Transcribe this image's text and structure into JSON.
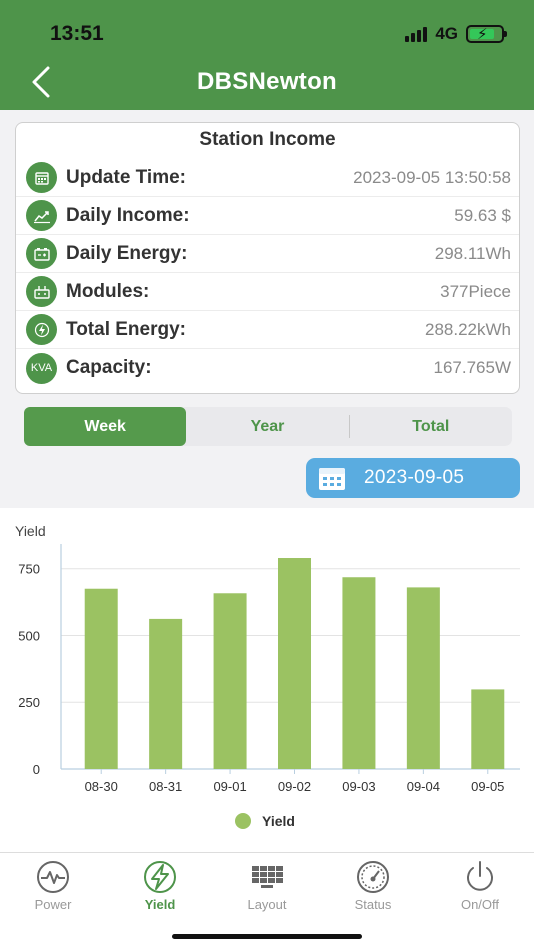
{
  "status_bar": {
    "time": "13:51",
    "network": "4G"
  },
  "header": {
    "title": "DBSNewton"
  },
  "income_card": {
    "title": "Station Income",
    "rows": [
      {
        "icon": "calendar-icon",
        "label": "Update Time:",
        "value": "2023-09-05 13:50:58"
      },
      {
        "icon": "chart-up-icon",
        "label": "Daily Income:",
        "value": "59.63 $"
      },
      {
        "icon": "battery-icon",
        "label": "Daily Energy:",
        "value": "298.11Wh"
      },
      {
        "icon": "module-icon",
        "label": "Modules:",
        "value": "377Piece"
      },
      {
        "icon": "bolt-icon",
        "label": "Total Energy:",
        "value": "288.22kWh"
      },
      {
        "icon": "kva-icon",
        "icon_text": "KVA",
        "label": "Capacity:",
        "value": "167.765W"
      }
    ]
  },
  "period_tabs": {
    "items": [
      "Week",
      "Year",
      "Total"
    ],
    "active": "Week"
  },
  "date_picker": {
    "value": "2023-09-05"
  },
  "chart_data": {
    "type": "bar",
    "ylabel": "Yield",
    "categories": [
      "08-30",
      "08-31",
      "09-01",
      "09-02",
      "09-03",
      "09-04",
      "09-05"
    ],
    "series": [
      {
        "name": "Yield",
        "values": [
          675,
          562,
          658,
          790,
          718,
          680,
          298
        ]
      }
    ],
    "ylim": [
      0,
      820
    ],
    "yticks": [
      0,
      250,
      500,
      750
    ],
    "grid": true,
    "legend": "bottom-center",
    "bar_color": "#9bc262"
  },
  "tab_bar": {
    "items": [
      {
        "label": "Power",
        "icon": "pulse-icon"
      },
      {
        "label": "Yield",
        "icon": "bolt-circle-icon"
      },
      {
        "label": "Layout",
        "icon": "grid-panel-icon"
      },
      {
        "label": "Status",
        "icon": "gauge-icon"
      },
      {
        "label": "On/Off",
        "icon": "power-icon"
      }
    ],
    "active": "Yield"
  },
  "colors": {
    "brand_green": "#4e944a",
    "date_blue": "#5aace0"
  }
}
